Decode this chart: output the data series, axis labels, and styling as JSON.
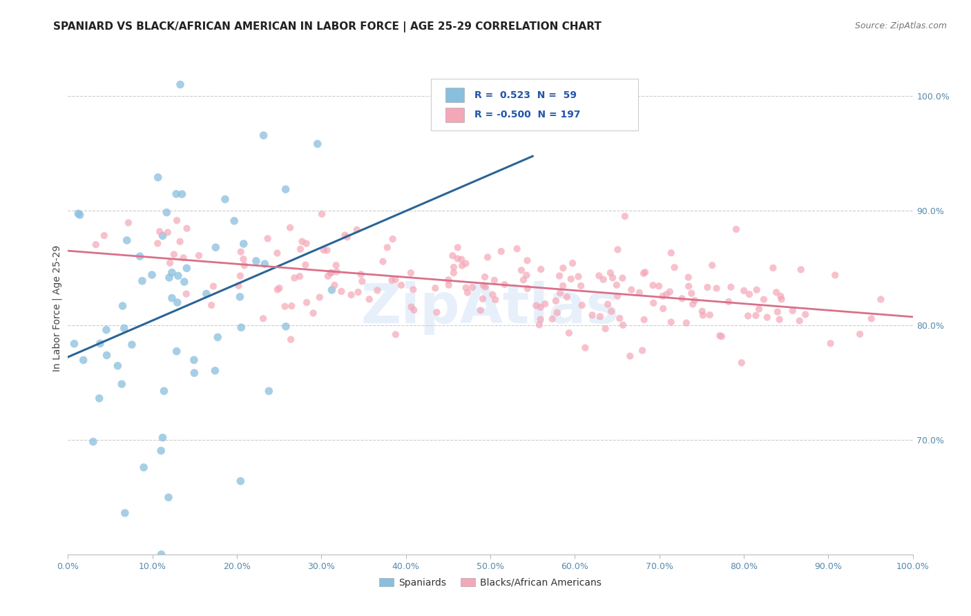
{
  "title": "SPANIARD VS BLACK/AFRICAN AMERICAN IN LABOR FORCE | AGE 25-29 CORRELATION CHART",
  "source": "Source: ZipAtlas.com",
  "ylabel": "In Labor Force | Age 25-29",
  "right_yticks": [
    0.7,
    0.8,
    0.9,
    1.0
  ],
  "right_yticklabels": [
    "70.0%",
    "80.0%",
    "90.0%",
    "100.0%"
  ],
  "xticks": [
    0.0,
    0.1,
    0.2,
    0.3,
    0.4,
    0.5,
    0.6,
    0.7,
    0.8,
    0.9,
    1.0
  ],
  "xticklabels": [
    "0.0%",
    "10.0%",
    "20.0%",
    "30.0%",
    "40.0%",
    "50.0%",
    "60.0%",
    "70.0%",
    "80.0%",
    "90.0%",
    "100.0%"
  ],
  "xlim": [
    0.0,
    1.0
  ],
  "ylim": [
    0.6,
    1.03
  ],
  "r_spaniards": 0.523,
  "n_spaniards": 59,
  "r_blacks": -0.5,
  "n_blacks": 197,
  "blue_color": "#89bfde",
  "blue_line_color": "#2a6496",
  "pink_color": "#f4a7b7",
  "pink_line_color": "#d9708a",
  "background_color": "#ffffff",
  "watermark": "ZipAtlas",
  "legend_r_blue": "R =  0.523  N =  59",
  "legend_r_pink": "R = -0.500  N = 197",
  "legend_label_blue": "Spaniards",
  "legend_label_pink": "Blacks/African Americans",
  "seed": 1234
}
